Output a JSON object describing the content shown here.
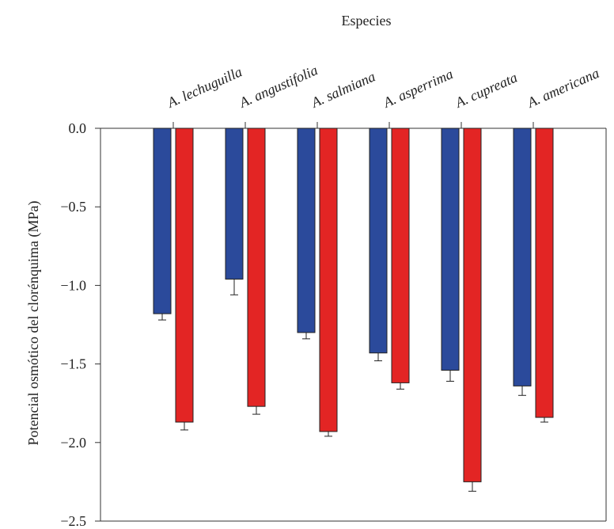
{
  "chart_data": {
    "type": "bar",
    "title": "",
    "xlabel": "Especies",
    "ylabel": "Potencial osmótico del clorénquima (MPa)",
    "ylim": [
      -2.5,
      0.0
    ],
    "yticks": [
      0.0,
      -0.5,
      -1.0,
      -1.5,
      -2.0,
      -2.5
    ],
    "ytick_labels": [
      "0.0",
      "−0.5",
      "−1.0",
      "−1.5",
      "−2.0",
      "−2.5"
    ],
    "categories": [
      "A. lechuguilla",
      "A. angustifolia",
      "A. salmiana",
      "A. asperrima",
      "A. cupreata",
      "A. americana"
    ],
    "x_axis_position": "top",
    "grid": false,
    "legend": "none",
    "series": [
      {
        "color": "#2b4a9b",
        "values": [
          -1.18,
          -0.96,
          -1.3,
          -1.43,
          -1.54,
          -1.64
        ],
        "errors": [
          0.04,
          0.1,
          0.04,
          0.05,
          0.07,
          0.06
        ]
      },
      {
        "color": "#e32524",
        "values": [
          -1.87,
          -1.77,
          -1.93,
          -1.62,
          -2.25,
          -1.84
        ],
        "errors": [
          0.05,
          0.05,
          0.03,
          0.04,
          0.06,
          0.03
        ]
      }
    ]
  }
}
